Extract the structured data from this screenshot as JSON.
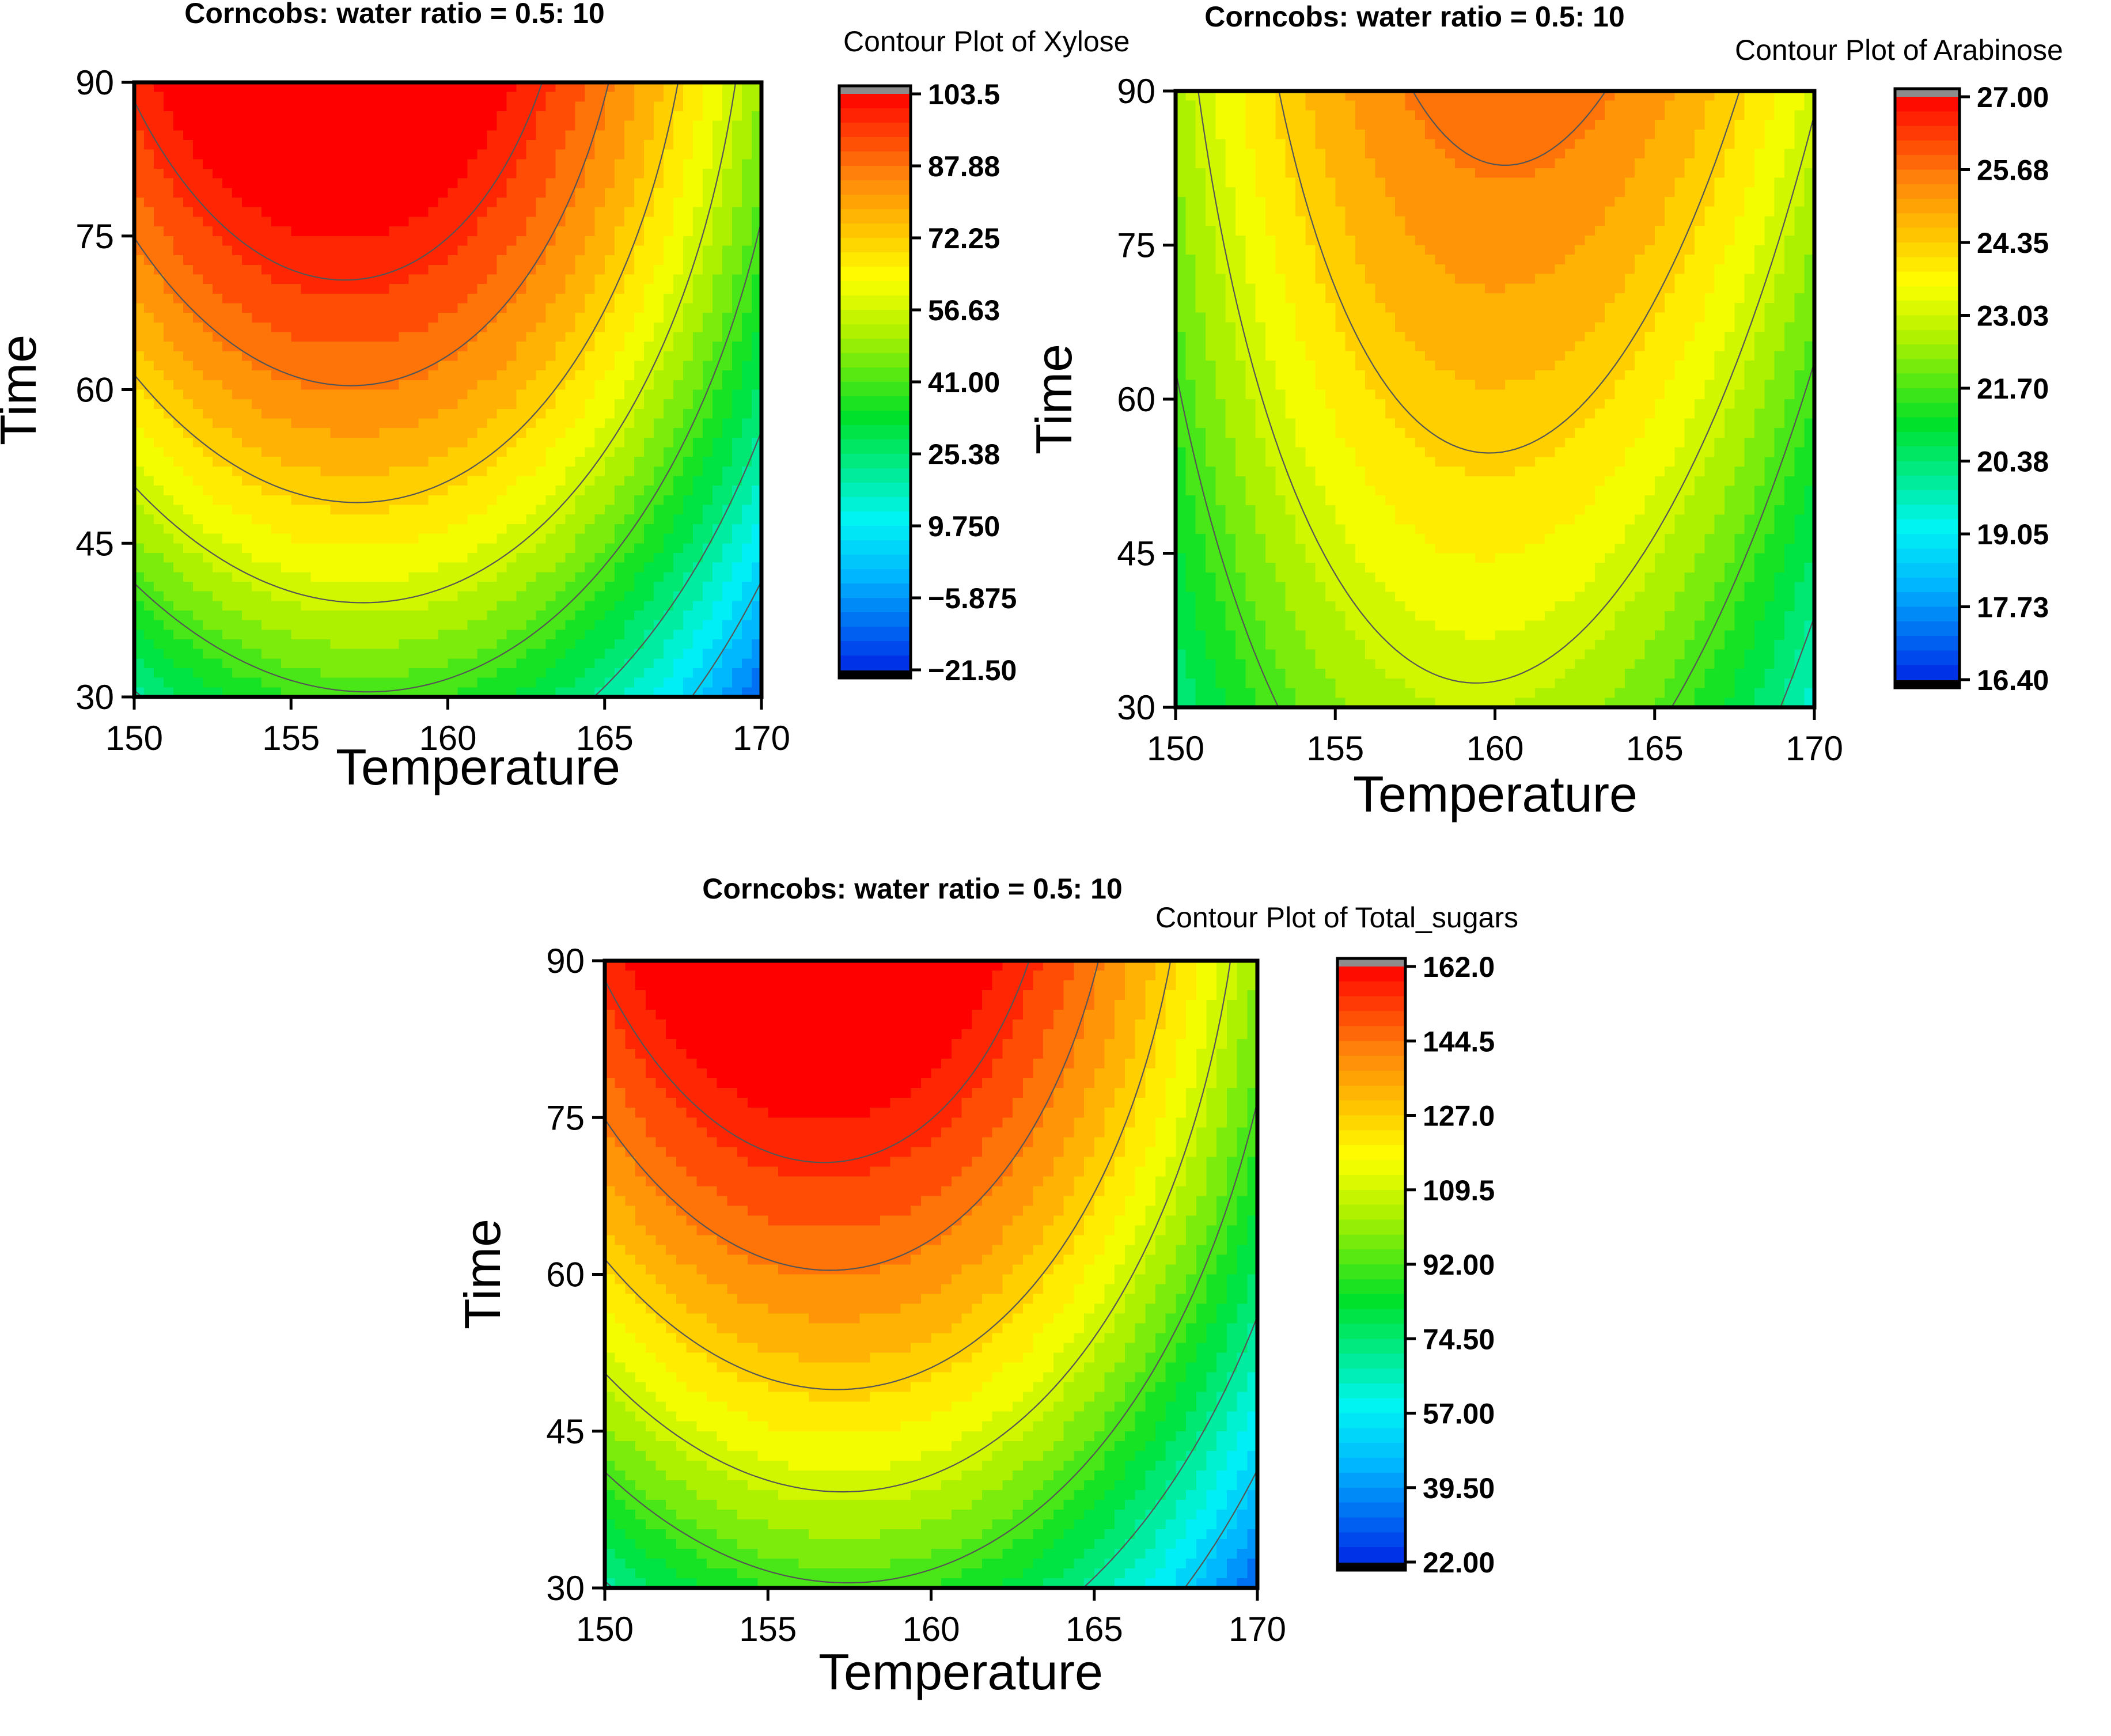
{
  "chart_data": [
    {
      "type": "contour",
      "title": "Corncobs: water ratio = 0.5: 10",
      "colorbar_title": "Contour Plot of Xylose",
      "xlabel": "Temperature",
      "ylabel": "Time",
      "xlim": [
        150,
        170
      ],
      "ylim": [
        30,
        90
      ],
      "xticks": [
        "150",
        "155",
        "160",
        "165",
        "170"
      ],
      "yticks": [
        "30",
        "45",
        "60",
        "75",
        "90"
      ],
      "z_range": [
        -21.5,
        103.5
      ],
      "peak": {
        "x": 158,
        "y": 90
      },
      "colorbar_labels": [
        "103.5",
        "87.88",
        "72.25",
        "56.63",
        "41.00",
        "25.38",
        "9.750",
        "−5.875",
        "−21.50"
      ]
    },
    {
      "type": "contour",
      "title": "Corncobs: water ratio = 0.5: 10",
      "colorbar_title": "Contour Plot of Arabinose",
      "xlabel": "Temperature",
      "ylabel": "Time",
      "xlim": [
        150,
        170
      ],
      "ylim": [
        30,
        90
      ],
      "xticks": [
        "150",
        "155",
        "160",
        "165",
        "170"
      ],
      "yticks": [
        "30",
        "45",
        "60",
        "75",
        "90"
      ],
      "z_range": [
        16.4,
        27.0
      ],
      "peak": {
        "x": 159,
        "y": 90
      },
      "colorbar_labels": [
        "27.00",
        "25.68",
        "24.35",
        "23.03",
        "21.70",
        "20.38",
        "19.05",
        "17.73",
        "16.40"
      ]
    },
    {
      "type": "contour",
      "title": "Corncobs: water ratio = 0.5: 10",
      "colorbar_title": "Contour Plot of Total_sugars",
      "xlabel": "Temperature",
      "ylabel": "Time",
      "xlim": [
        150,
        170
      ],
      "ylim": [
        30,
        90
      ],
      "xticks": [
        "150",
        "155",
        "160",
        "165",
        "170"
      ],
      "yticks": [
        "30",
        "45",
        "60",
        "75",
        "90"
      ],
      "z_range": [
        22.0,
        162.0
      ],
      "peak": {
        "x": 158,
        "y": 90
      },
      "colorbar_labels": [
        "162.0",
        "144.5",
        "127.0",
        "109.5",
        "92.00",
        "74.50",
        "57.00",
        "39.50",
        "22.00"
      ]
    }
  ]
}
